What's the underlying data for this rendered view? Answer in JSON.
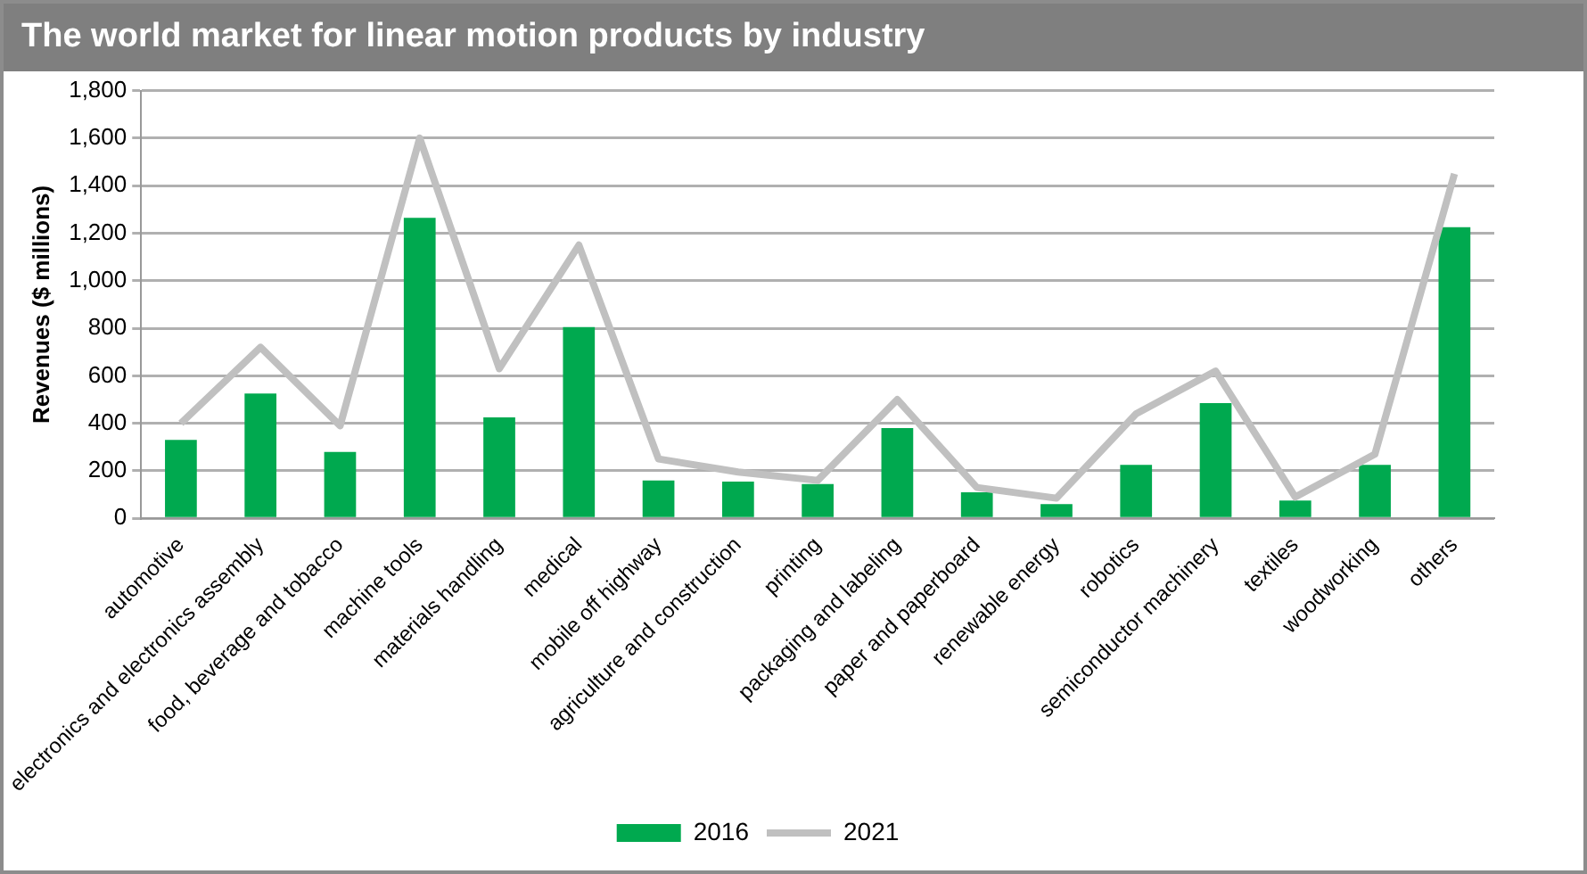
{
  "chart_data": {
    "type": "bar",
    "title": "The world market for linear motion products by industry",
    "ylabel": "Revenues ($ millions)",
    "categories": [
      "automotive",
      "electronics and electronics assembly",
      "food, beverage and tobacco",
      "machine tools",
      "materials handling",
      "medical",
      "mobile off highway",
      "agriculture and construction",
      "printing",
      "packaging and labeling",
      "paper and paperboard",
      "renewable energy",
      "robotics",
      "semiconductor machinery",
      "textiles",
      "woodworking",
      "others"
    ],
    "series": [
      {
        "name": "2016",
        "color": "#00a94f",
        "values": [
          330,
          525,
          280,
          1265,
          425,
          805,
          160,
          155,
          145,
          380,
          110,
          60,
          225,
          485,
          75,
          225,
          1225
        ]
      },
      {
        "name": "2021",
        "type": "line",
        "color": "#c0c0c0",
        "values": [
          400,
          720,
          390,
          1600,
          630,
          1150,
          250,
          195,
          160,
          500,
          130,
          85,
          440,
          620,
          90,
          270,
          1450
        ]
      }
    ],
    "ylim": [
      0,
      1800
    ],
    "yticks": [
      {
        "value": 0,
        "label": "0"
      },
      {
        "value": 200,
        "label": "200"
      },
      {
        "value": 400,
        "label": "400"
      },
      {
        "value": 600,
        "label": "600"
      },
      {
        "value": 800,
        "label": "800"
      },
      {
        "value": 1000,
        "label": "1,000"
      },
      {
        "value": 1200,
        "label": "1,200"
      },
      {
        "value": 1400,
        "label": "1,400"
      },
      {
        "value": 1600,
        "label": "1,600"
      },
      {
        "value": 1800,
        "label": "1,800"
      }
    ],
    "grid": "y",
    "legend": "bottom",
    "marker": "none",
    "line_style": "solid"
  }
}
